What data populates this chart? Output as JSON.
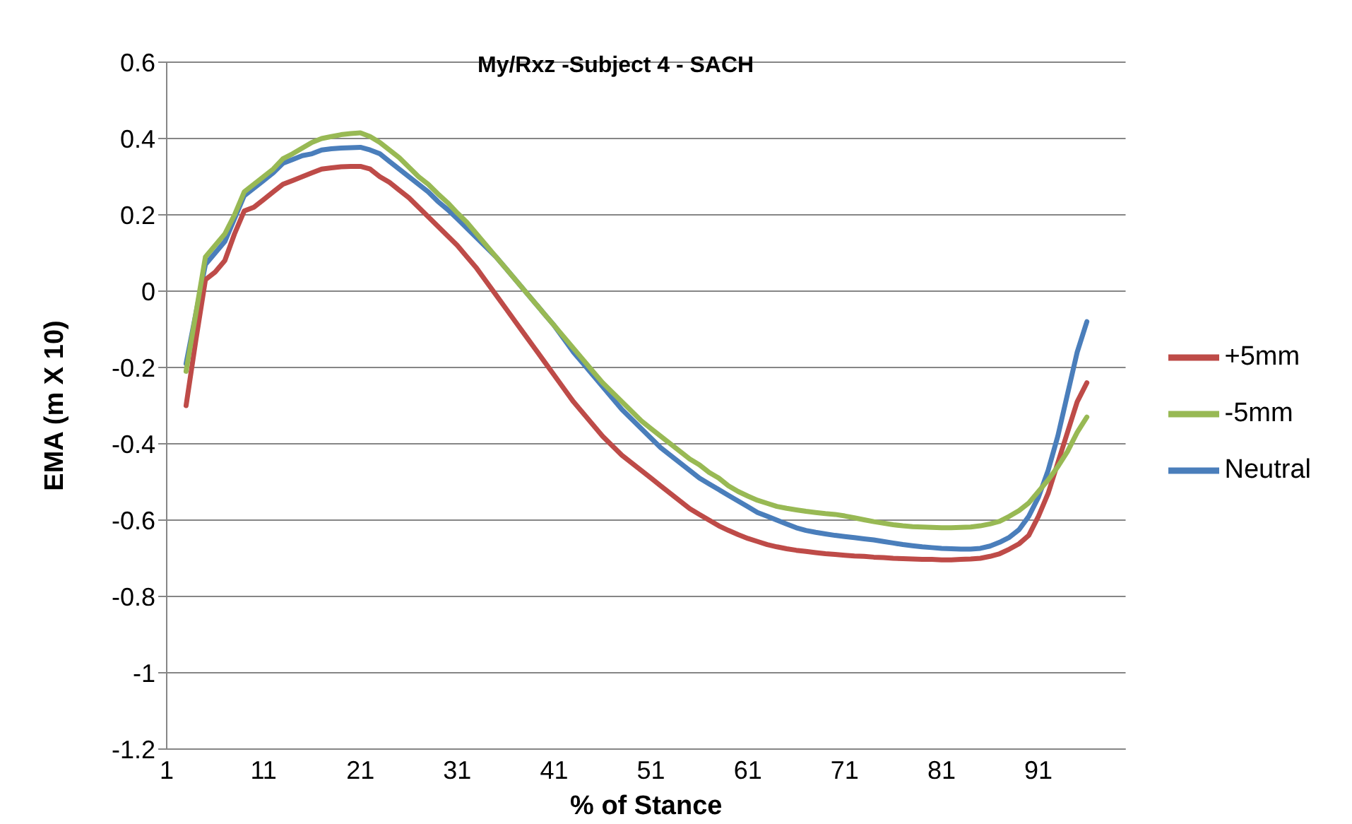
{
  "chart_data": {
    "type": "line",
    "title": "My/Rxz -Subject 4 - SACH",
    "xlabel": "% of Stance",
    "ylabel": "EMA (m X 10)",
    "categories": [
      "1",
      null,
      null,
      null,
      null,
      null,
      null,
      null,
      null,
      null,
      "11",
      null,
      null,
      null,
      null,
      null,
      null,
      null,
      null,
      null,
      "21",
      null,
      null,
      null,
      null,
      null,
      null,
      null,
      null,
      null,
      "31",
      null,
      null,
      null,
      null,
      null,
      null,
      null,
      null,
      null,
      "41",
      null,
      null,
      null,
      null,
      null,
      null,
      null,
      null,
      null,
      "51",
      null,
      null,
      null,
      null,
      null,
      null,
      null,
      null,
      null,
      "61",
      null,
      null,
      null,
      null,
      null,
      null,
      null,
      null,
      null,
      "71",
      null,
      null,
      null,
      null,
      null,
      null,
      null,
      null,
      null,
      "81",
      null,
      null,
      null,
      null,
      null,
      null,
      null,
      null,
      null,
      "91",
      null,
      null,
      null,
      null,
      null,
      null,
      null,
      null,
      null
    ],
    "series": [
      {
        "name": "Neutral",
        "color": "#4a7ebb",
        "values": [
          null,
          null,
          -0.19,
          -0.06,
          0.07,
          0.1,
          0.13,
          0.19,
          0.25,
          0.27,
          0.29,
          0.31,
          0.335,
          0.345,
          0.355,
          0.36,
          0.37,
          0.373,
          0.375,
          0.376,
          0.377,
          0.37,
          0.36,
          0.34,
          0.32,
          0.3,
          0.28,
          0.26,
          0.235,
          0.214,
          0.19,
          0.165,
          0.14,
          0.115,
          0.09,
          0.06,
          0.03,
          0.0,
          -0.03,
          -0.06,
          -0.09,
          -0.125,
          -0.16,
          -0.19,
          -0.22,
          -0.25,
          -0.28,
          -0.31,
          -0.335,
          -0.36,
          -0.385,
          -0.41,
          -0.43,
          -0.45,
          -0.47,
          -0.49,
          -0.505,
          -0.52,
          -0.535,
          -0.55,
          -0.565,
          -0.58,
          -0.59,
          -0.6,
          -0.61,
          -0.62,
          -0.627,
          -0.632,
          -0.636,
          -0.64,
          -0.643,
          -0.646,
          -0.649,
          -0.652,
          -0.656,
          -0.66,
          -0.664,
          -0.667,
          -0.67,
          -0.672,
          -0.674,
          -0.675,
          -0.676,
          -0.676,
          -0.674,
          -0.668,
          -0.658,
          -0.645,
          -0.625,
          -0.59,
          -0.54,
          -0.47,
          -0.38,
          -0.27,
          -0.16,
          -0.08,
          null,
          null,
          null,
          null
        ]
      },
      {
        "name": "+5mm",
        "color": "#be4b48",
        "values": [
          null,
          null,
          -0.3,
          -0.13,
          0.03,
          0.05,
          0.08,
          0.15,
          0.21,
          0.22,
          0.24,
          0.26,
          0.28,
          0.29,
          0.3,
          0.31,
          0.32,
          0.323,
          0.326,
          0.327,
          0.327,
          0.32,
          0.3,
          0.285,
          0.265,
          0.245,
          0.22,
          0.195,
          0.17,
          0.145,
          0.12,
          0.09,
          0.06,
          0.025,
          -0.01,
          -0.045,
          -0.08,
          -0.115,
          -0.15,
          -0.185,
          -0.22,
          -0.255,
          -0.29,
          -0.32,
          -0.35,
          -0.38,
          -0.405,
          -0.43,
          -0.45,
          -0.47,
          -0.49,
          -0.51,
          -0.53,
          -0.55,
          -0.57,
          -0.585,
          -0.6,
          -0.615,
          -0.627,
          -0.638,
          -0.648,
          -0.656,
          -0.664,
          -0.67,
          -0.675,
          -0.679,
          -0.682,
          -0.685,
          -0.688,
          -0.69,
          -0.692,
          -0.694,
          -0.695,
          -0.697,
          -0.698,
          -0.7,
          -0.701,
          -0.702,
          -0.703,
          -0.703,
          -0.704,
          -0.704,
          -0.703,
          -0.702,
          -0.7,
          -0.695,
          -0.688,
          -0.676,
          -0.662,
          -0.64,
          -0.59,
          -0.53,
          -0.45,
          -0.37,
          -0.29,
          -0.24,
          null,
          null,
          null,
          null
        ]
      },
      {
        "name": "-5mm",
        "color": "#98b954",
        "values": [
          null,
          null,
          -0.21,
          -0.06,
          0.09,
          0.12,
          0.15,
          0.2,
          0.26,
          0.28,
          0.3,
          0.32,
          0.347,
          0.36,
          0.375,
          0.39,
          0.4,
          0.405,
          0.41,
          0.413,
          0.415,
          0.405,
          0.39,
          0.37,
          0.35,
          0.325,
          0.3,
          0.28,
          0.255,
          0.232,
          0.205,
          0.18,
          0.15,
          0.12,
          0.09,
          0.06,
          0.03,
          0.0,
          -0.03,
          -0.06,
          -0.09,
          -0.12,
          -0.15,
          -0.18,
          -0.21,
          -0.24,
          -0.265,
          -0.29,
          -0.315,
          -0.34,
          -0.36,
          -0.38,
          -0.4,
          -0.42,
          -0.44,
          -0.455,
          -0.475,
          -0.49,
          -0.51,
          -0.525,
          -0.537,
          -0.548,
          -0.556,
          -0.564,
          -0.569,
          -0.573,
          -0.577,
          -0.58,
          -0.583,
          -0.585,
          -0.589,
          -0.594,
          -0.599,
          -0.604,
          -0.608,
          -0.612,
          -0.615,
          -0.617,
          -0.618,
          -0.619,
          -0.62,
          -0.62,
          -0.619,
          -0.618,
          -0.615,
          -0.61,
          -0.603,
          -0.59,
          -0.575,
          -0.555,
          -0.525,
          -0.495,
          -0.46,
          -0.42,
          -0.37,
          -0.33,
          null,
          null,
          null,
          null
        ]
      }
    ],
    "ylim": [
      -1.2,
      0.6
    ],
    "yticks": [
      0.6,
      0.4,
      0.2,
      0,
      -0.2,
      -0.4,
      -0.6,
      -0.8,
      -1,
      -1.2
    ],
    "grid": "y",
    "legend": "right",
    "marker": "none",
    "line_style": "solid"
  }
}
